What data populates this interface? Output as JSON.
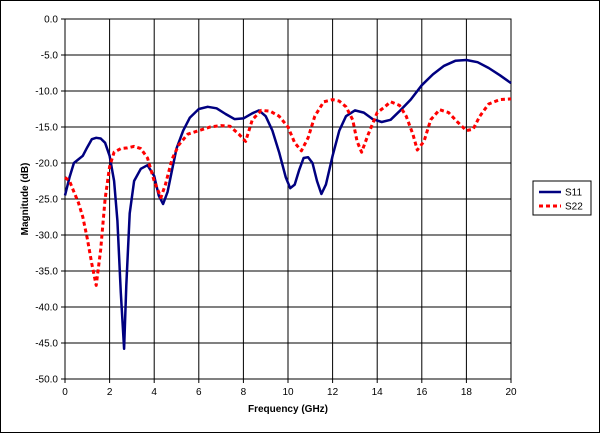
{
  "chart_data": {
    "type": "line",
    "title": "",
    "xlabel": "Frequency (GHz)",
    "ylabel": "Magnitude (dB)",
    "xlim": [
      0,
      20
    ],
    "ylim": [
      -50,
      0
    ],
    "x_ticks": [
      0,
      2,
      4,
      6,
      8,
      10,
      12,
      14,
      16,
      18,
      20
    ],
    "x_tick_labels": [
      "0",
      "2",
      "4",
      "6",
      "8",
      "10",
      "12",
      "14",
      "16",
      "18",
      "20"
    ],
    "y_ticks": [
      0,
      -5,
      -10,
      -15,
      -20,
      -25,
      -30,
      -35,
      -40,
      -45,
      -50
    ],
    "y_tick_labels": [
      "0.0",
      "-5.0",
      "-10.0",
      "-15.0",
      "-20.0",
      "-25.0",
      "-30.0",
      "-35.0",
      "-40.0",
      "-45.0",
      "-50.0"
    ],
    "grid": true,
    "legend_position": "right",
    "series": [
      {
        "name": "S11",
        "color": "#000080",
        "style": "solid",
        "points": [
          [
            0.0,
            -24.5
          ],
          [
            0.2,
            -22.0
          ],
          [
            0.4,
            -20.0
          ],
          [
            0.6,
            -19.5
          ],
          [
            0.8,
            -19.0
          ],
          [
            1.0,
            -17.8
          ],
          [
            1.2,
            -16.7
          ],
          [
            1.4,
            -16.5
          ],
          [
            1.6,
            -16.6
          ],
          [
            1.8,
            -17.2
          ],
          [
            2.0,
            -19.0
          ],
          [
            2.2,
            -22.5
          ],
          [
            2.35,
            -28.0
          ],
          [
            2.5,
            -38.0
          ],
          [
            2.65,
            -45.8
          ],
          [
            2.75,
            -37.0
          ],
          [
            2.9,
            -27.0
          ],
          [
            3.1,
            -22.5
          ],
          [
            3.4,
            -20.8
          ],
          [
            3.7,
            -20.3
          ],
          [
            4.0,
            -21.8
          ],
          [
            4.2,
            -24.5
          ],
          [
            4.4,
            -25.7
          ],
          [
            4.6,
            -24.0
          ],
          [
            4.8,
            -21.0
          ],
          [
            5.0,
            -18.0
          ],
          [
            5.3,
            -15.5
          ],
          [
            5.6,
            -13.7
          ],
          [
            6.0,
            -12.5
          ],
          [
            6.4,
            -12.2
          ],
          [
            6.8,
            -12.4
          ],
          [
            7.2,
            -13.2
          ],
          [
            7.6,
            -13.9
          ],
          [
            8.0,
            -13.8
          ],
          [
            8.4,
            -13.1
          ],
          [
            8.7,
            -12.7
          ],
          [
            9.0,
            -13.5
          ],
          [
            9.3,
            -15.5
          ],
          [
            9.6,
            -18.5
          ],
          [
            9.9,
            -22.0
          ],
          [
            10.1,
            -23.5
          ],
          [
            10.3,
            -23.0
          ],
          [
            10.5,
            -21.0
          ],
          [
            10.7,
            -19.3
          ],
          [
            10.9,
            -19.2
          ],
          [
            11.1,
            -20.0
          ],
          [
            11.3,
            -22.5
          ],
          [
            11.5,
            -24.3
          ],
          [
            11.7,
            -23.0
          ],
          [
            12.0,
            -19.0
          ],
          [
            12.3,
            -15.5
          ],
          [
            12.6,
            -13.5
          ],
          [
            13.0,
            -12.7
          ],
          [
            13.4,
            -13.0
          ],
          [
            13.8,
            -13.9
          ],
          [
            14.2,
            -14.3
          ],
          [
            14.6,
            -14.0
          ],
          [
            15.0,
            -12.8
          ],
          [
            15.5,
            -11.2
          ],
          [
            16.0,
            -9.2
          ],
          [
            16.5,
            -7.7
          ],
          [
            17.0,
            -6.5
          ],
          [
            17.5,
            -5.8
          ],
          [
            18.0,
            -5.7
          ],
          [
            18.5,
            -6.0
          ],
          [
            19.0,
            -6.8
          ],
          [
            19.5,
            -7.8
          ],
          [
            20.0,
            -8.9
          ]
        ]
      },
      {
        "name": "S22",
        "color": "#ff0000",
        "style": "dashed",
        "points": [
          [
            0.0,
            -22.0
          ],
          [
            0.2,
            -22.5
          ],
          [
            0.4,
            -24.0
          ],
          [
            0.6,
            -25.5
          ],
          [
            0.8,
            -27.5
          ],
          [
            1.0,
            -30.5
          ],
          [
            1.2,
            -34.0
          ],
          [
            1.4,
            -37.0
          ],
          [
            1.6,
            -32.0
          ],
          [
            1.8,
            -25.0
          ],
          [
            2.0,
            -20.5
          ],
          [
            2.2,
            -18.5
          ],
          [
            2.5,
            -18.0
          ],
          [
            2.8,
            -17.9
          ],
          [
            3.1,
            -17.7
          ],
          [
            3.4,
            -18.0
          ],
          [
            3.7,
            -19.3
          ],
          [
            4.0,
            -22.5
          ],
          [
            4.3,
            -24.8
          ],
          [
            4.5,
            -23.0
          ],
          [
            4.8,
            -19.5
          ],
          [
            5.1,
            -17.5
          ],
          [
            5.5,
            -16.0
          ],
          [
            6.0,
            -15.5
          ],
          [
            6.5,
            -15.0
          ],
          [
            7.0,
            -14.8
          ],
          [
            7.4,
            -14.9
          ],
          [
            7.8,
            -16.0
          ],
          [
            8.1,
            -17.0
          ],
          [
            8.4,
            -14.0
          ],
          [
            8.8,
            -12.7
          ],
          [
            9.2,
            -12.8
          ],
          [
            9.6,
            -13.5
          ],
          [
            10.0,
            -15.0
          ],
          [
            10.3,
            -17.2
          ],
          [
            10.6,
            -18.3
          ],
          [
            10.9,
            -16.5
          ],
          [
            11.2,
            -13.5
          ],
          [
            11.6,
            -11.5
          ],
          [
            12.0,
            -11.2
          ],
          [
            12.3,
            -11.4
          ],
          [
            12.6,
            -12.2
          ],
          [
            12.9,
            -14.0
          ],
          [
            13.1,
            -17.0
          ],
          [
            13.3,
            -18.5
          ],
          [
            13.6,
            -16.0
          ],
          [
            14.0,
            -13.0
          ],
          [
            14.3,
            -12.3
          ],
          [
            14.6,
            -11.5
          ],
          [
            15.0,
            -12.0
          ],
          [
            15.3,
            -13.5
          ],
          [
            15.6,
            -16.0
          ],
          [
            15.8,
            -18.2
          ],
          [
            16.1,
            -17.0
          ],
          [
            16.4,
            -14.0
          ],
          [
            16.8,
            -12.6
          ],
          [
            17.2,
            -13.0
          ],
          [
            17.6,
            -14.3
          ],
          [
            18.0,
            -15.5
          ],
          [
            18.3,
            -15.3
          ],
          [
            18.6,
            -13.5
          ],
          [
            19.0,
            -11.8
          ],
          [
            19.5,
            -11.2
          ],
          [
            20.0,
            -11.1
          ]
        ]
      }
    ]
  }
}
